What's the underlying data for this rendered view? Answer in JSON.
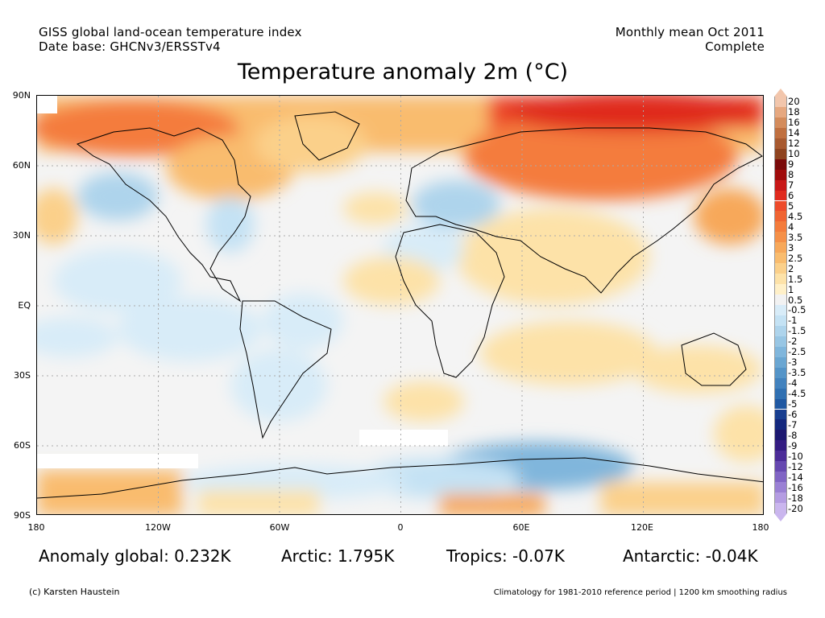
{
  "header": {
    "left_line1": "GISS global land-ocean temperature index",
    "left_line2": "Date base: GHCNv3/ERSSTv4",
    "right_line1": "Monthly mean Oct 2011",
    "right_line2": "Complete"
  },
  "title": "Temperature anomaly 2m (°C)",
  "map": {
    "lat_labels": [
      "90N",
      "60N",
      "30N",
      "EQ",
      "30S",
      "60S",
      "90S"
    ],
    "lon_labels": [
      "180",
      "120W",
      "60W",
      "0",
      "60E",
      "120E",
      "180"
    ]
  },
  "stats": {
    "global": "Anomaly global: 0.232K",
    "arctic": "Arctic: 1.795K",
    "tropics": "Tropics: -0.07K",
    "antarctic": "Antarctic: -0.04K"
  },
  "footer": {
    "credit": "(c) Karsten Haustein",
    "note": "Climatology for 1981-2010 reference period | 1200 km smoothing radius"
  },
  "colorbar": {
    "labels": [
      "20",
      "18",
      "16",
      "14",
      "12",
      "10",
      "9",
      "8",
      "7",
      "6",
      "5",
      "4.5",
      "4",
      "3.5",
      "3",
      "2.5",
      "2",
      "1.5",
      "1",
      "0.5",
      "-0.5",
      "-1",
      "-1.5",
      "-2",
      "-2.5",
      "-3",
      "-3.5",
      "-4",
      "-4.5",
      "-5",
      "-6",
      "-7",
      "-8",
      "-9",
      "-10",
      "-12",
      "-14",
      "-16",
      "-18",
      "-20"
    ],
    "colors": [
      "#f2c6ac",
      "#e6a880",
      "#d48c5c",
      "#c07040",
      "#a85a30",
      "#8f4420",
      "#7a0a0a",
      "#a00c0c",
      "#c81818",
      "#e02a1e",
      "#ee4a2a",
      "#f06432",
      "#f47c3c",
      "#f59048",
      "#f7a85a",
      "#f9bc6e",
      "#fbd08a",
      "#fde2a8",
      "#fff0c8",
      "#f2f2f2",
      "#d8ecf8",
      "#c4e2f4",
      "#aed4ec",
      "#98c6e4",
      "#80b6dc",
      "#6aa6d2",
      "#5494c8",
      "#4282be",
      "#3070b2",
      "#2058a2",
      "#183e90",
      "#14287e",
      "#1c1870",
      "#341c82",
      "#4c2c98",
      "#6648b0",
      "#8064c4",
      "#9a80d4",
      "#b49ce2",
      "#cab6ee"
    ]
  }
}
